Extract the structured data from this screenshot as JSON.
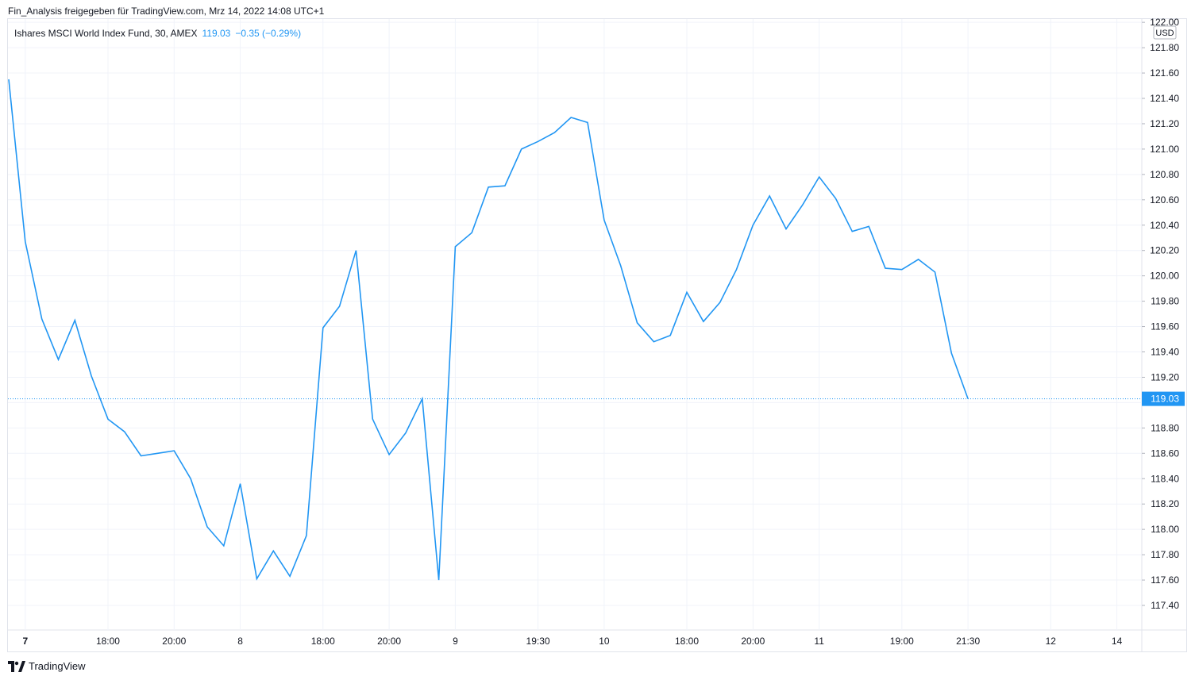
{
  "header": {
    "shared_by": "Fin_Analysis freigegeben für TradingView.com, Mrz 14, 2022 14:08 UTC+1"
  },
  "legend": {
    "symbol": "Ishares MSCI World Index Fund, 30, AMEX",
    "last": "119.03",
    "change": "−0.35 (−0.29%)"
  },
  "footer": {
    "brand": "TradingView"
  },
  "colors": {
    "line": "#2196f3",
    "grid": "#f0f3fa",
    "price_tag_bg": "#2196f3"
  },
  "chart_data": {
    "type": "line",
    "currency": "USD",
    "last_price_label": "119.03",
    "last_price": 119.03,
    "ylim": [
      117.2,
      122.0
    ],
    "y_ticks": [
      "117.40",
      "117.60",
      "117.80",
      "118.00",
      "118.20",
      "118.40",
      "118.60",
      "118.80",
      "119.00",
      "119.20",
      "119.40",
      "119.60",
      "119.80",
      "120.00",
      "120.20",
      "120.40",
      "120.60",
      "120.80",
      "121.00",
      "121.20",
      "121.40",
      "121.60",
      "121.80",
      "122.00"
    ],
    "x_tick_labels": [
      "7",
      "18:00",
      "20:00",
      "8",
      "18:00",
      "20:00",
      "9",
      "19:30",
      "10",
      "18:00",
      "20:00",
      "11",
      "19:00",
      "21:30",
      "12",
      "14"
    ],
    "x_tick_index": [
      1,
      6,
      10,
      14,
      19,
      23,
      27,
      32,
      36,
      41,
      45,
      49,
      54,
      58,
      63,
      67
    ],
    "series": [
      {
        "values": [
          121.55,
          120.27,
          119.66,
          119.34,
          119.65,
          119.21,
          118.87,
          118.77,
          118.58,
          118.6,
          118.62,
          118.4,
          118.02,
          117.87,
          118.36,
          117.61,
          117.83,
          117.63,
          117.95,
          119.59,
          119.76,
          120.2,
          118.87,
          118.59,
          118.76,
          119.03,
          117.6,
          120.23,
          120.34,
          120.7,
          120.71,
          121.0,
          121.06,
          121.13,
          121.25,
          121.21,
          120.44,
          120.08,
          119.63,
          119.48,
          119.53,
          119.87,
          119.64,
          119.79,
          120.05,
          120.4,
          120.63,
          120.37,
          120.56,
          120.78,
          120.61,
          120.35,
          120.39,
          120.06,
          120.05,
          120.13,
          120.03,
          119.39,
          119.03
        ]
      }
    ]
  }
}
